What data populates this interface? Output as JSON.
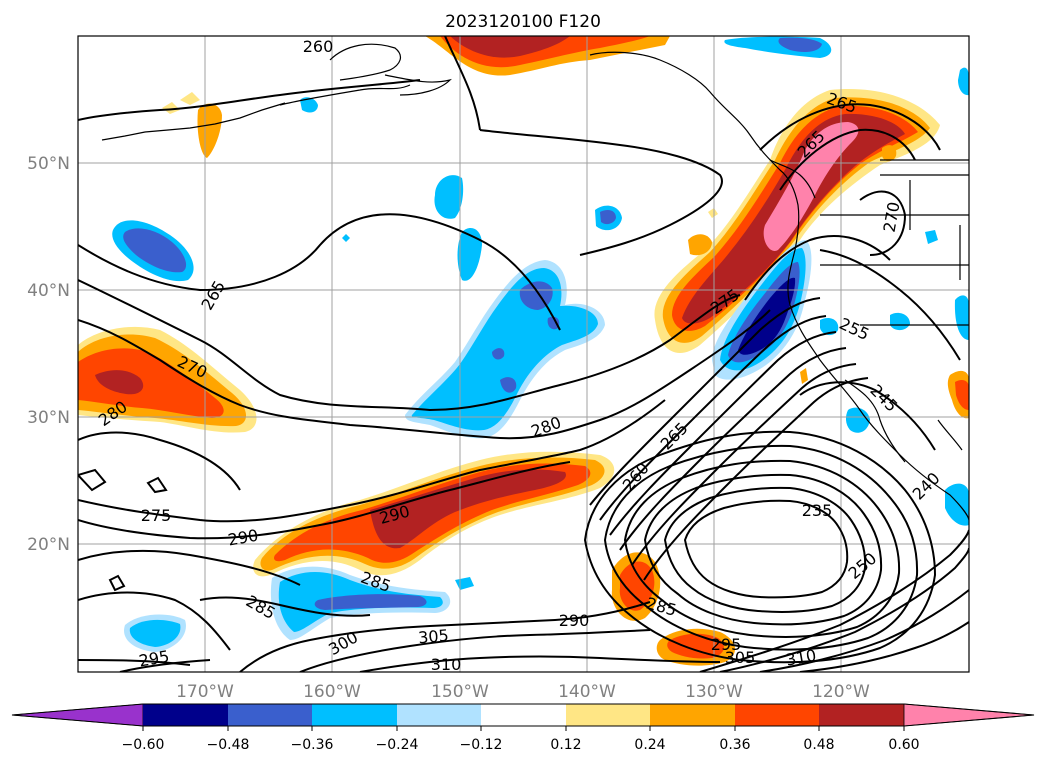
{
  "figure": {
    "title": "2023120100 F120"
  },
  "map": {
    "lat_labels": [
      "50°N",
      "40°N",
      "30°N",
      "20°N"
    ],
    "lon_labels": [
      "170°W",
      "160°W",
      "150°W",
      "140°W",
      "130°W",
      "120°W"
    ],
    "grid": true,
    "contour_color": "#000000",
    "contour_labels": [
      "260",
      "265",
      "265",
      "265",
      "270",
      "270",
      "275",
      "275",
      "280",
      "280",
      "265",
      "260",
      "290",
      "285",
      "285",
      "290",
      "300",
      "305",
      "310",
      "295",
      "285",
      "295",
      "290",
      "305",
      "310",
      "235",
      "250",
      "240",
      "255",
      "245"
    ]
  },
  "colorbar": {
    "ticks": [
      "−0.60",
      "−0.48",
      "−0.36",
      "−0.24",
      "−0.12",
      "0.12",
      "0.24",
      "0.36",
      "0.48",
      "0.60"
    ],
    "colors": [
      "#9932cc",
      "#00008b",
      "#3a5fcd",
      "#00bfff",
      "#b0e2ff",
      "#ffffff",
      "#ffe685",
      "#ffa500",
      "#ff4500",
      "#b22222",
      "#ff82ab"
    ],
    "extend": "both"
  }
}
